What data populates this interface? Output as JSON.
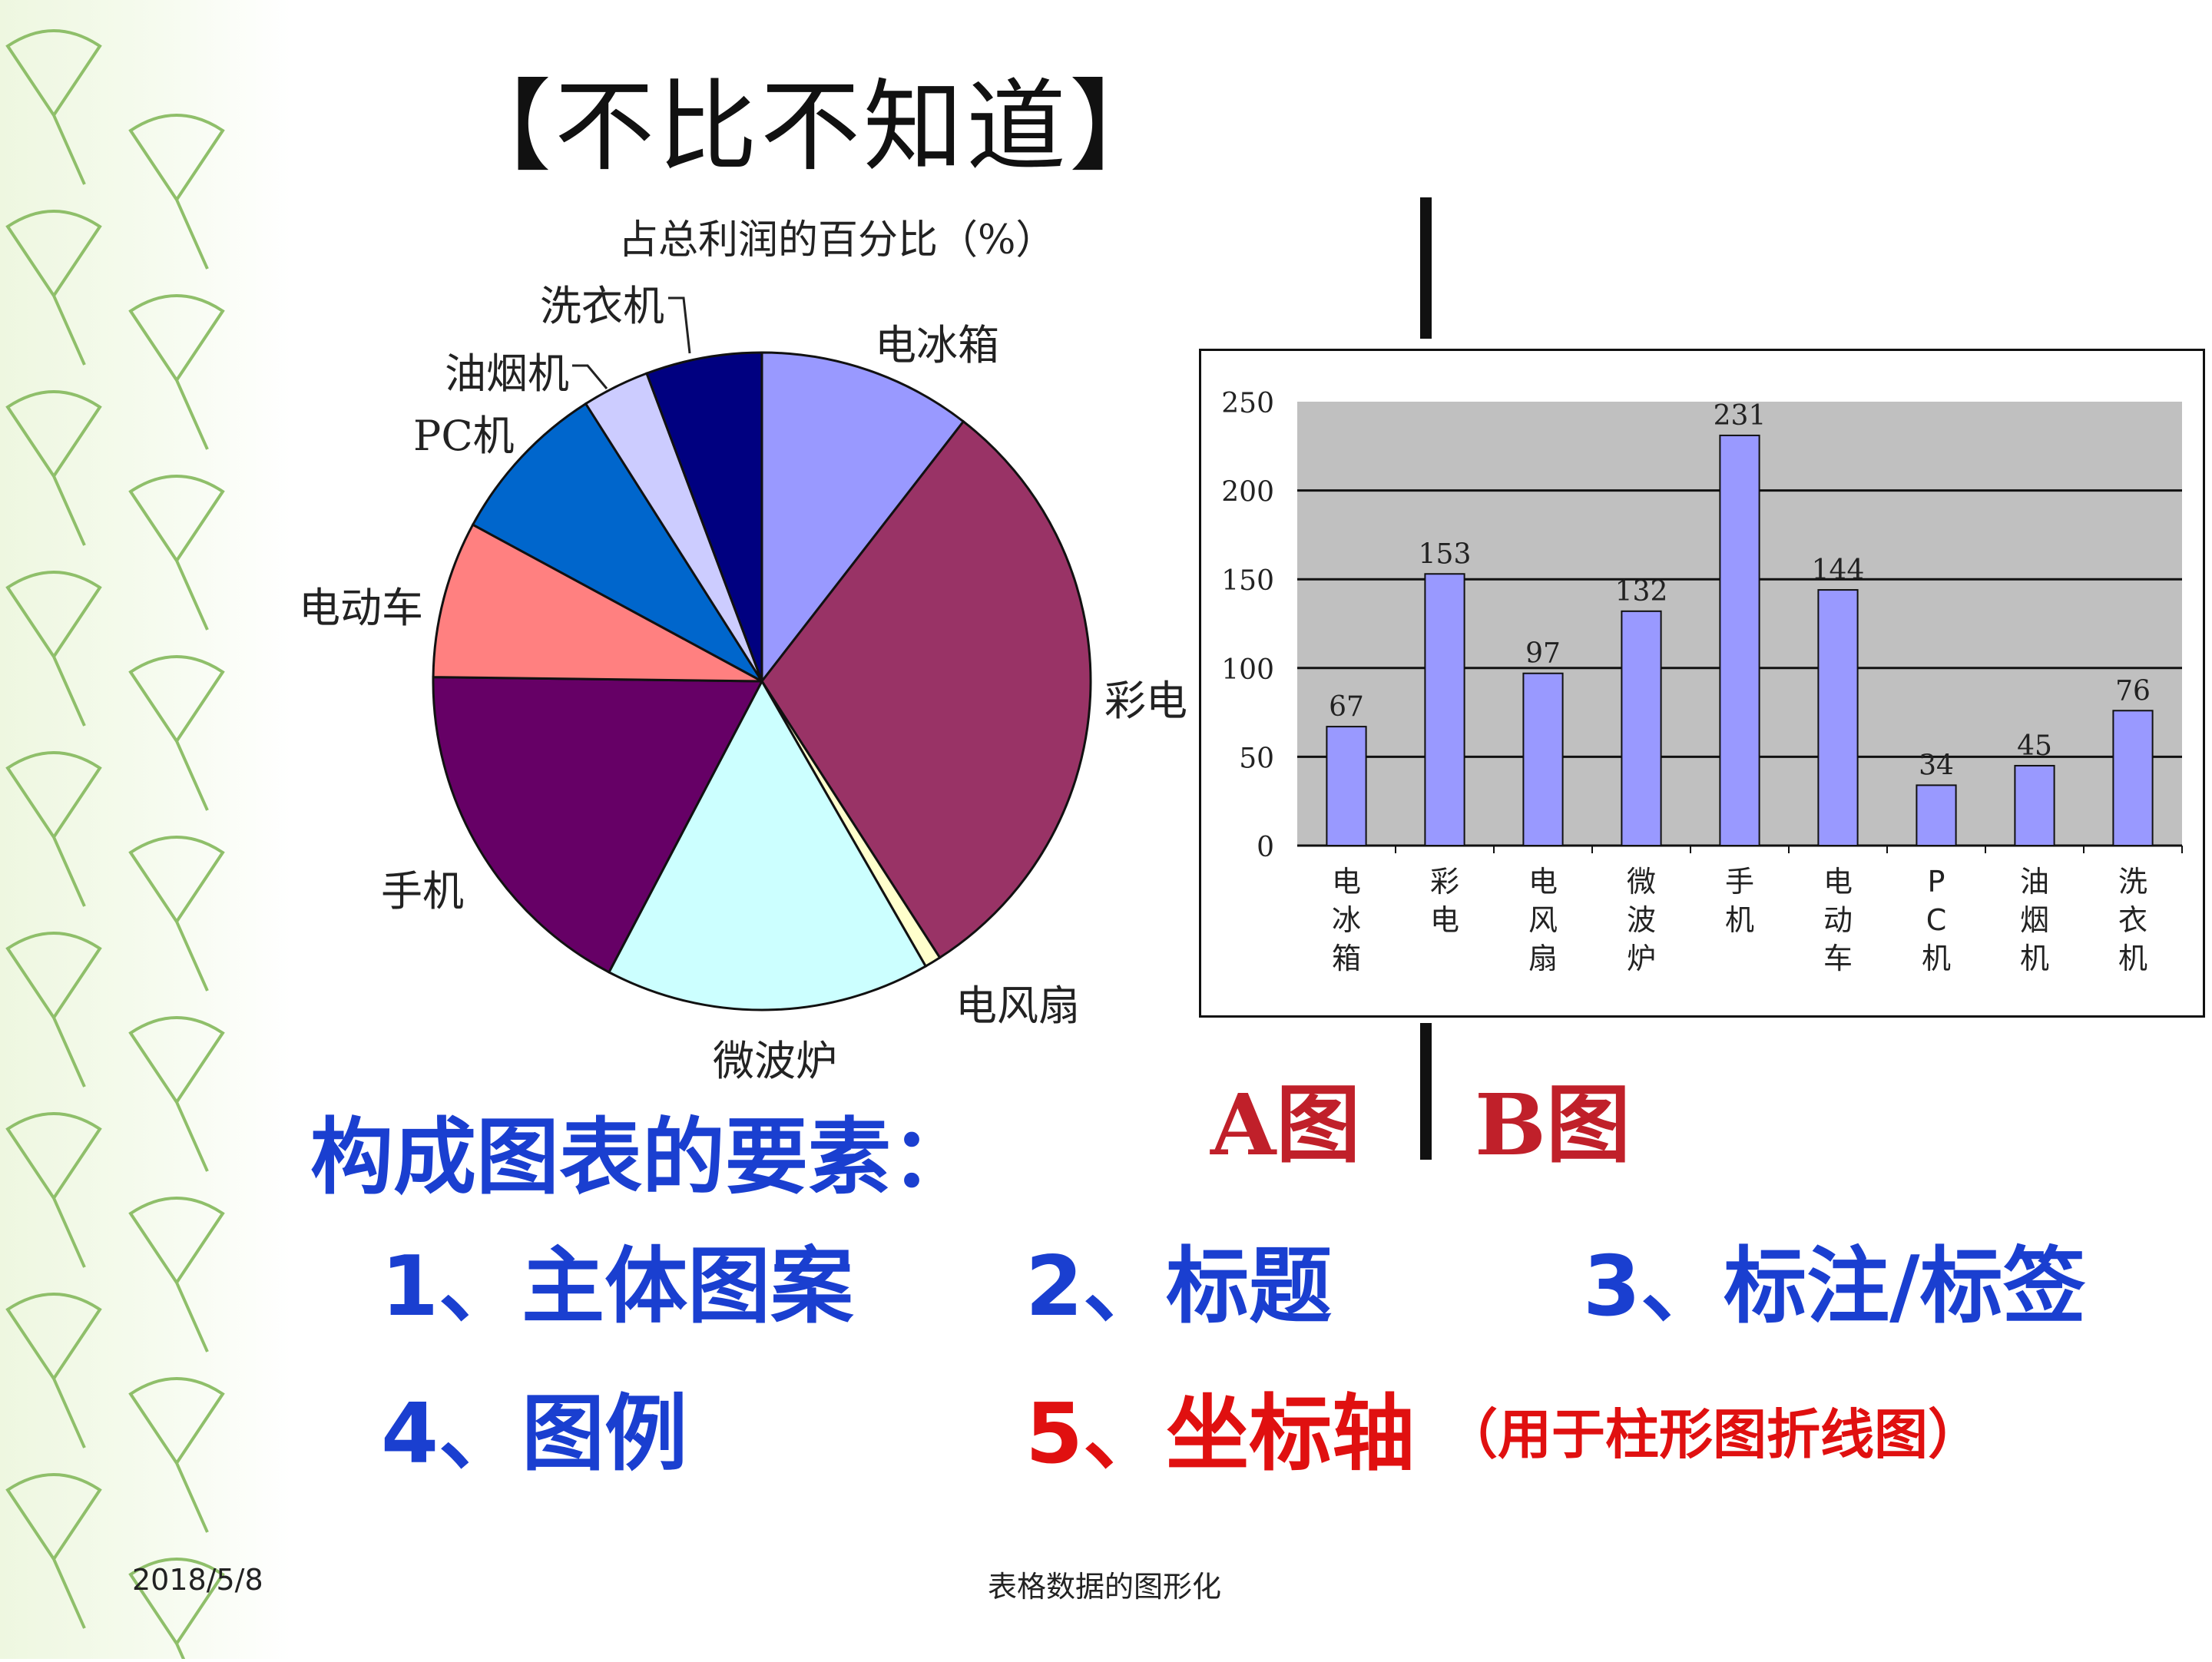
{
  "slide": {
    "title": "【不比不知道】",
    "pie_caption": "A图",
    "bar_caption": "B图",
    "elements_heading": "构成图表的要素：",
    "items": [
      {
        "label": "1、主体图案",
        "color": "#1a3fd0"
      },
      {
        "label": "2、标题",
        "color": "#1a3fd0"
      },
      {
        "label": "3、标注/标签",
        "color": "#1a3fd0"
      },
      {
        "label": "4、图例",
        "color": "#1a3fd0"
      },
      {
        "label": "5、坐标轴",
        "color": "#e01010"
      }
    ],
    "item5_note": "（用于柱形图折线图）",
    "footer_date": "2018/5/8",
    "footer_title": "表格数据的图形化"
  },
  "chart_data": [
    {
      "type": "pie",
      "title": "占总利润的百分比（%）",
      "categories": [
        "电冰箱",
        "彩电",
        "电风扇",
        "微波炉",
        "手机",
        "电动车",
        "PC机",
        "油烟机",
        "洗衣机"
      ],
      "values": [
        10.5,
        30.4,
        0.8,
        16.0,
        17.5,
        7.7,
        8.1,
        3.3,
        5.7
      ],
      "colors": [
        "#9999ff",
        "#993366",
        "#ffffcc",
        "#ccffff",
        "#660066",
        "#ff8080",
        "#0066cc",
        "#ccccff",
        "#000080"
      ]
    },
    {
      "type": "bar",
      "categories": [
        "电冰箱",
        "彩电",
        "电风扇",
        "微波炉",
        "手机",
        "电动车",
        "PC机",
        "油烟机",
        "洗衣机"
      ],
      "values": [
        67,
        153,
        97,
        132,
        231,
        144,
        34,
        45,
        76
      ],
      "ylim": [
        0,
        250
      ],
      "yticks": [
        0,
        50,
        100,
        150,
        200,
        250
      ],
      "grid": true,
      "bar_color": "#9999ff",
      "plot_bg": "#c0c0c0"
    }
  ]
}
